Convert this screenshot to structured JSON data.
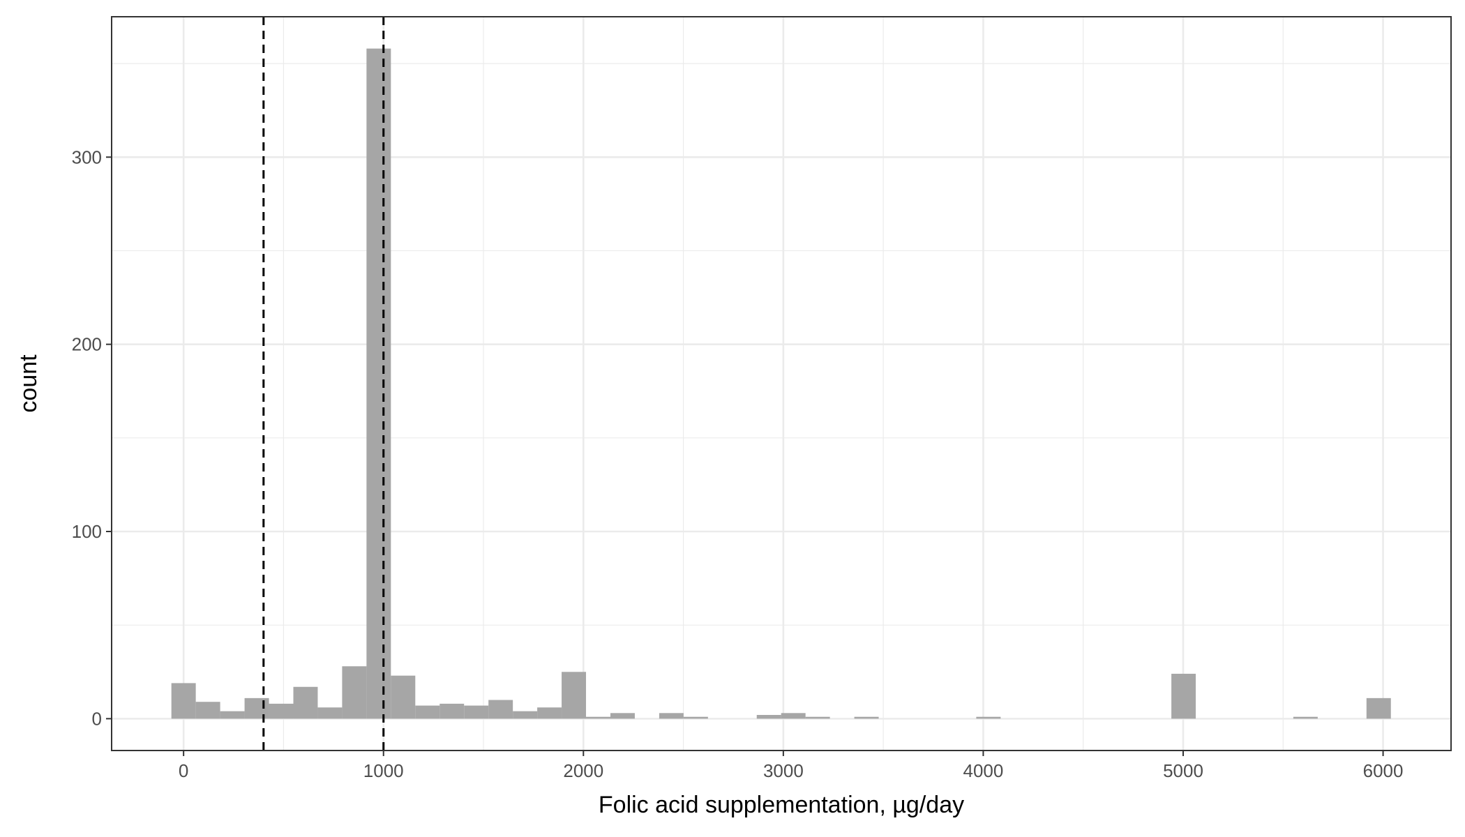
{
  "chart_data": {
    "type": "bar",
    "subtype": "histogram",
    "title": "",
    "xlabel": "Folic acid supplementation, µg/day",
    "ylabel": "count",
    "xlim": [
      -360,
      6340
    ],
    "ylim": [
      -17,
      375
    ],
    "grid": true,
    "bin_width": 122,
    "x_ticks": [
      0,
      1000,
      2000,
      3000,
      4000,
      5000,
      6000
    ],
    "y_ticks": [
      0,
      100,
      200,
      300
    ],
    "bins": [
      {
        "x": 0,
        "count": 19
      },
      {
        "x": 122,
        "count": 9
      },
      {
        "x": 244,
        "count": 4
      },
      {
        "x": 366,
        "count": 11
      },
      {
        "x": 488,
        "count": 8
      },
      {
        "x": 610,
        "count": 17
      },
      {
        "x": 732,
        "count": 6
      },
      {
        "x": 854,
        "count": 28
      },
      {
        "x": 976,
        "count": 358
      },
      {
        "x": 1098,
        "count": 23
      },
      {
        "x": 1220,
        "count": 7
      },
      {
        "x": 1342,
        "count": 8
      },
      {
        "x": 1464,
        "count": 7
      },
      {
        "x": 1586,
        "count": 10
      },
      {
        "x": 1708,
        "count": 4
      },
      {
        "x": 1830,
        "count": 6
      },
      {
        "x": 1952,
        "count": 25
      },
      {
        "x": 2074,
        "count": 1
      },
      {
        "x": 2196,
        "count": 3
      },
      {
        "x": 2440,
        "count": 3
      },
      {
        "x": 2562,
        "count": 1
      },
      {
        "x": 2928,
        "count": 2
      },
      {
        "x": 3050,
        "count": 3
      },
      {
        "x": 3172,
        "count": 1
      },
      {
        "x": 3416,
        "count": 1
      },
      {
        "x": 4026,
        "count": 1
      },
      {
        "x": 5002,
        "count": 24
      },
      {
        "x": 5612,
        "count": 1
      },
      {
        "x": 5978,
        "count": 11
      }
    ],
    "reference_lines": [
      400,
      1000
    ],
    "colors": {
      "bar": "#a6a6a6",
      "reference_line": "#000000",
      "grid": "#ebebeb",
      "panel_border": "#333333"
    }
  }
}
